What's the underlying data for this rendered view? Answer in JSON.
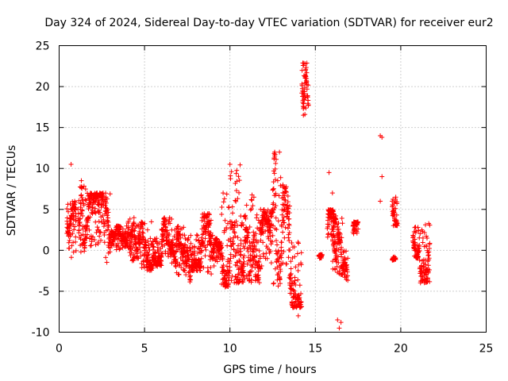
{
  "chart_data": {
    "type": "scatter",
    "title": "Day 324 of 2024, Sidereal Day-to-day VTEC variation (SDTVAR) for receiver eur2",
    "xlabel": "GPS time / hours",
    "ylabel": "SDTVAR / TECUs",
    "xlim": [
      0,
      25
    ],
    "ylim": [
      -10,
      25
    ],
    "xticks": [
      0,
      5,
      10,
      15,
      20,
      25
    ],
    "yticks": [
      -10,
      -5,
      0,
      5,
      10,
      15,
      20,
      25
    ],
    "grid": true,
    "marker": "+",
    "color": "#ff0000",
    "segments": [
      {
        "x0": 0.45,
        "x1": 1.0,
        "lo": -1.0,
        "hi": 6.0
      },
      {
        "x0": 1.1,
        "x1": 1.6,
        "lo": -0.5,
        "hi": 8.0
      },
      {
        "x0": 1.6,
        "x1": 2.6,
        "lo": 0.5,
        "hi": 7.0
      },
      {
        "x0": 2.6,
        "x1": 3.0,
        "lo": -1.5,
        "hi": 7.0
      },
      {
        "x0": 3.0,
        "x1": 4.0,
        "lo": 0.0,
        "hi": 3.0
      },
      {
        "x0": 4.0,
        "x1": 4.5,
        "lo": -1.5,
        "hi": 4.0
      },
      {
        "x0": 4.5,
        "x1": 5.5,
        "lo": -2.5,
        "hi": 3.5
      },
      {
        "x0": 5.5,
        "x1": 6.0,
        "lo": -2.0,
        "hi": 2.0
      },
      {
        "x0": 6.0,
        "x1": 6.6,
        "lo": -1.0,
        "hi": 4.0
      },
      {
        "x0": 6.6,
        "x1": 7.3,
        "lo": -3.0,
        "hi": 3.0
      },
      {
        "x0": 7.3,
        "x1": 7.7,
        "lo": -4.0,
        "hi": 2.0
      },
      {
        "x0": 7.7,
        "x1": 8.3,
        "lo": -2.5,
        "hi": 2.0
      },
      {
        "x0": 8.3,
        "x1": 9.0,
        "lo": -3.0,
        "hi": 4.5
      },
      {
        "x0": 9.0,
        "x1": 9.5,
        "lo": -2.0,
        "hi": 1.5
      },
      {
        "x0": 9.5,
        "x1": 10.0,
        "lo": -4.5,
        "hi": 7.0
      },
      {
        "x0": 10.0,
        "x1": 10.6,
        "lo": -4.0,
        "hi": 10.5
      },
      {
        "x0": 10.6,
        "x1": 11.2,
        "lo": -4.0,
        "hi": 6.0
      },
      {
        "x0": 11.2,
        "x1": 11.8,
        "lo": -4.0,
        "hi": 7.0
      },
      {
        "x0": 11.8,
        "x1": 12.5,
        "lo": -2.0,
        "hi": 5.0
      },
      {
        "x0": 12.5,
        "x1": 13.0,
        "lo": -4.5,
        "hi": 12.0
      },
      {
        "x0": 13.0,
        "x1": 13.5,
        "lo": -4.0,
        "hi": 8.0
      },
      {
        "x0": 13.5,
        "x1": 14.2,
        "lo": -7.0,
        "hi": 1.0
      },
      {
        "x0": 14.2,
        "x1": 14.6,
        "lo": 16.5,
        "hi": 23.0
      },
      {
        "x0": 15.2,
        "x1": 15.4,
        "lo": -1.0,
        "hi": -0.5
      },
      {
        "x0": 15.7,
        "x1": 16.2,
        "lo": 1.5,
        "hi": 5.0
      },
      {
        "x0": 16.0,
        "x1": 16.6,
        "lo": -3.0,
        "hi": 4.0
      },
      {
        "x0": 16.6,
        "x1": 16.9,
        "lo": -4.0,
        "hi": 0.0
      },
      {
        "x0": 17.2,
        "x1": 17.5,
        "lo": 2.0,
        "hi": 3.5
      },
      {
        "x0": 19.5,
        "x1": 19.8,
        "lo": 3.0,
        "hi": 6.5
      },
      {
        "x0": 19.5,
        "x1": 19.7,
        "lo": -1.3,
        "hi": -0.8
      },
      {
        "x0": 20.7,
        "x1": 21.1,
        "lo": -1.0,
        "hi": 3.0
      },
      {
        "x0": 21.1,
        "x1": 21.7,
        "lo": -4.0,
        "hi": 3.5
      }
    ],
    "outliers": [
      [
        0.7,
        10.5
      ],
      [
        1.3,
        8.5
      ],
      [
        10.0,
        10.5
      ],
      [
        9.6,
        7.0
      ],
      [
        12.9,
        12.0
      ],
      [
        13.1,
        8.0
      ],
      [
        13.8,
        -6.8
      ],
      [
        14.0,
        -8.0
      ],
      [
        14.4,
        22.8
      ],
      [
        14.3,
        16.5
      ],
      [
        15.8,
        9.5
      ],
      [
        16.0,
        7.0
      ],
      [
        16.3,
        -8.5
      ],
      [
        16.4,
        -9.5
      ],
      [
        16.5,
        -8.8
      ],
      [
        18.8,
        14.0
      ],
      [
        18.9,
        13.8
      ],
      [
        18.9,
        9.0
      ],
      [
        18.8,
        6.0
      ],
      [
        19.6,
        5.8
      ],
      [
        13.5,
        -4.0
      ],
      [
        13.7,
        -5.8
      ]
    ]
  }
}
